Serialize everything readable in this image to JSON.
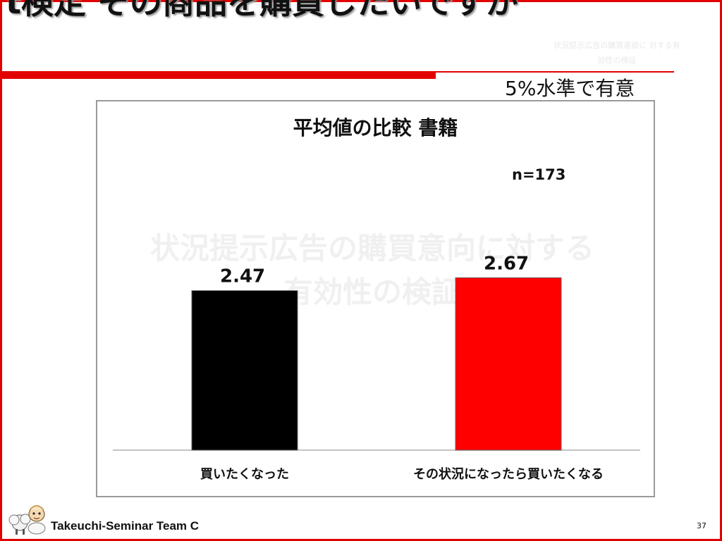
{
  "slide": {
    "title": "t検定 その商品を購買したいですか",
    "watermark_small": "状況提示広告の購買意欲に 対する有効性の検証",
    "significance": "5%水準で有意",
    "footer": "Takeuchi-Seminar Team C",
    "page_number": "37"
  },
  "chart_panel": {
    "watermark": "状況提示広告の購買意向に対する有効性の検証",
    "n_note": "n=173"
  },
  "colors": {
    "accent": "#e30000",
    "bar_black": "#000000",
    "bar_red": "#ff0000"
  },
  "chart_data": {
    "type": "bar",
    "title": "平均値の比較 書籍",
    "categories": [
      "買いたくなった",
      "その状況になったら買いたくなる"
    ],
    "values": [
      2.47,
      2.67
    ],
    "data_labels": [
      "2.47",
      "2.67"
    ],
    "bar_colors": [
      "#000000",
      "#ff0000"
    ],
    "ylim": [
      0,
      3.0
    ],
    "grid": false,
    "legend": "none",
    "xlabel": "",
    "ylabel": ""
  }
}
